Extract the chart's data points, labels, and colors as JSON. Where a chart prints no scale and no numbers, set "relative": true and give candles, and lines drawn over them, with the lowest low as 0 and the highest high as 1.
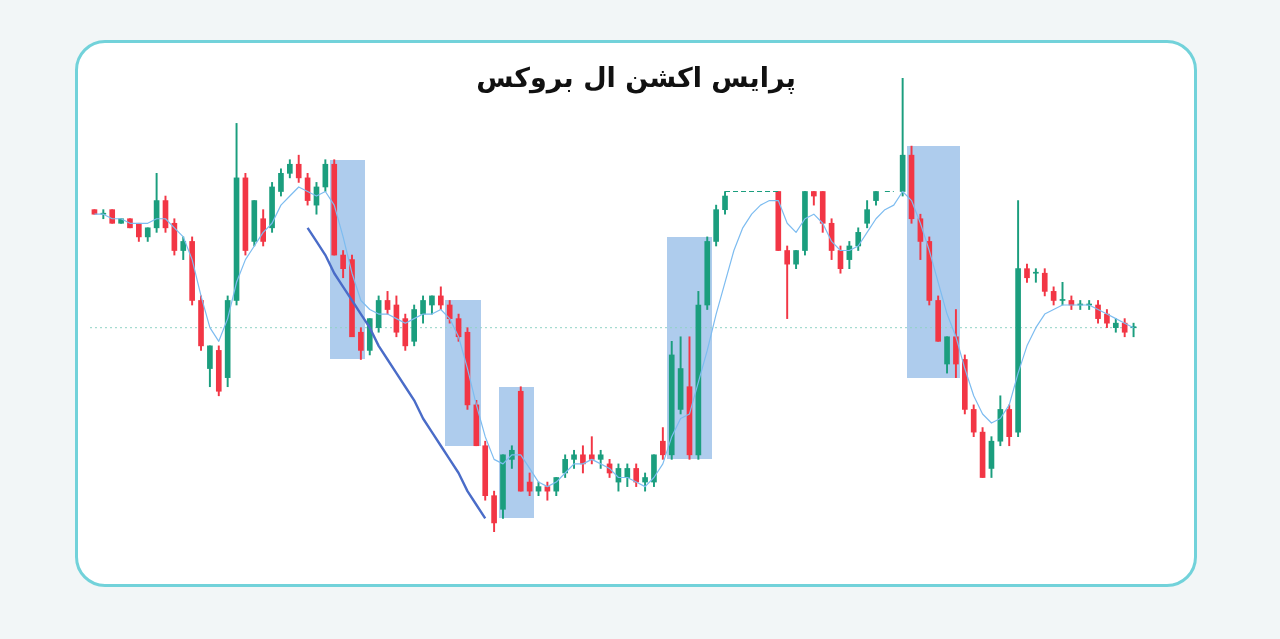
{
  "chart_data": {
    "type": "candlestick",
    "title": "پرایس اکشن ال بروکس",
    "relative": true,
    "legend": false,
    "tick_labels": false,
    "categories": [
      null,
      null,
      null,
      null,
      null,
      null,
      null,
      null,
      null,
      null,
      null,
      null,
      null,
      null,
      null,
      null,
      null,
      null,
      null,
      null,
      null,
      null,
      null,
      null,
      null,
      null,
      null,
      null,
      null,
      null,
      null,
      null,
      null,
      null,
      null,
      null,
      null,
      null,
      null,
      null,
      null,
      null,
      null,
      null,
      null,
      null,
      null,
      null,
      null,
      null,
      null,
      null,
      null,
      null,
      null,
      null,
      null,
      null,
      null,
      null,
      null,
      null,
      null,
      null,
      null,
      null,
      null,
      null,
      null,
      null,
      null,
      null,
      null,
      null,
      null,
      null,
      null,
      null,
      null,
      null,
      null,
      null,
      null,
      null,
      null,
      null,
      null,
      null,
      null,
      null,
      null,
      null,
      null,
      null,
      null,
      null,
      null,
      null,
      null,
      null,
      null,
      null,
      null,
      null,
      null,
      null,
      null,
      null,
      null,
      null,
      null,
      null,
      null,
      null,
      null,
      null,
      null,
      null
    ],
    "ohlc": [
      [
        0.71,
        0.71,
        0.7,
        0.7
      ],
      [
        0.7,
        0.71,
        0.69,
        0.7
      ],
      [
        0.71,
        0.71,
        0.68,
        0.68
      ],
      [
        0.68,
        0.69,
        0.68,
        0.69
      ],
      [
        0.69,
        0.69,
        0.67,
        0.67
      ],
      [
        0.68,
        0.68,
        0.64,
        0.65
      ],
      [
        0.65,
        0.67,
        0.64,
        0.67
      ],
      [
        0.67,
        0.79,
        0.66,
        0.73
      ],
      [
        0.73,
        0.74,
        0.66,
        0.67
      ],
      [
        0.68,
        0.69,
        0.61,
        0.62
      ],
      [
        0.62,
        0.65,
        0.6,
        0.64
      ],
      [
        0.64,
        0.65,
        0.5,
        0.51
      ],
      [
        0.51,
        0.52,
        0.4,
        0.41
      ],
      [
        0.36,
        0.41,
        0.32,
        0.41
      ],
      [
        0.4,
        0.41,
        0.3,
        0.31
      ],
      [
        0.34,
        0.52,
        0.32,
        0.51
      ],
      [
        0.51,
        0.9,
        0.5,
        0.78
      ],
      [
        0.78,
        0.79,
        0.61,
        0.62
      ],
      [
        0.64,
        0.73,
        0.63,
        0.73
      ],
      [
        0.69,
        0.71,
        0.63,
        0.64
      ],
      [
        0.67,
        0.77,
        0.66,
        0.76
      ],
      [
        0.75,
        0.8,
        0.74,
        0.79
      ],
      [
        0.79,
        0.82,
        0.78,
        0.81
      ],
      [
        0.81,
        0.83,
        0.77,
        0.78
      ],
      [
        0.78,
        0.79,
        0.72,
        0.73
      ],
      [
        0.72,
        0.77,
        0.7,
        0.76
      ],
      [
        0.76,
        0.82,
        0.75,
        0.81
      ],
      [
        0.81,
        0.82,
        0.61,
        0.61
      ],
      [
        0.61,
        0.62,
        0.56,
        0.58
      ],
      [
        0.6,
        0.61,
        0.43,
        0.43
      ],
      [
        0.44,
        0.45,
        0.38,
        0.4
      ],
      [
        0.4,
        0.47,
        0.39,
        0.47
      ],
      [
        0.45,
        0.52,
        0.44,
        0.51
      ],
      [
        0.51,
        0.53,
        0.48,
        0.49
      ],
      [
        0.5,
        0.52,
        0.43,
        0.44
      ],
      [
        0.47,
        0.48,
        0.4,
        0.41
      ],
      [
        0.42,
        0.5,
        0.41,
        0.49
      ],
      [
        0.48,
        0.52,
        0.46,
        0.51
      ],
      [
        0.5,
        0.52,
        0.48,
        0.52
      ],
      [
        0.52,
        0.54,
        0.49,
        0.5
      ],
      [
        0.5,
        0.51,
        0.46,
        0.47
      ],
      [
        0.47,
        0.48,
        0.42,
        0.43
      ],
      [
        0.44,
        0.45,
        0.27,
        0.28
      ],
      [
        0.28,
        0.29,
        0.19,
        0.19
      ],
      [
        0.19,
        0.2,
        0.07,
        0.08
      ],
      [
        0.08,
        0.09,
        0.0,
        0.02
      ],
      [
        0.05,
        0.17,
        0.03,
        0.17
      ],
      [
        0.16,
        0.19,
        0.14,
        0.18
      ],
      [
        0.31,
        0.32,
        0.09,
        0.09
      ],
      [
        0.11,
        0.13,
        0.08,
        0.09
      ],
      [
        0.09,
        0.11,
        0.08,
        0.1
      ],
      [
        0.1,
        0.11,
        0.07,
        0.09
      ],
      [
        0.09,
        0.12,
        0.08,
        0.12
      ],
      [
        0.13,
        0.17,
        0.12,
        0.16
      ],
      [
        0.16,
        0.18,
        0.14,
        0.17
      ],
      [
        0.17,
        0.19,
        0.13,
        0.15
      ],
      [
        0.17,
        0.21,
        0.15,
        0.16
      ],
      [
        0.16,
        0.18,
        0.14,
        0.17
      ],
      [
        0.15,
        0.16,
        0.12,
        0.13
      ],
      [
        0.11,
        0.15,
        0.09,
        0.14
      ],
      [
        0.12,
        0.15,
        0.1,
        0.14
      ],
      [
        0.14,
        0.15,
        0.1,
        0.11
      ],
      [
        0.11,
        0.13,
        0.09,
        0.12
      ],
      [
        0.11,
        0.17,
        0.1,
        0.17
      ],
      [
        0.2,
        0.23,
        0.16,
        0.17
      ],
      [
        0.17,
        0.42,
        0.16,
        0.39
      ],
      [
        0.27,
        0.43,
        0.26,
        0.36
      ],
      [
        0.32,
        0.43,
        0.16,
        0.17
      ],
      [
        0.17,
        0.53,
        0.16,
        0.5
      ],
      [
        0.5,
        0.65,
        0.49,
        0.64
      ],
      [
        0.64,
        0.72,
        0.63,
        0.71
      ],
      [
        0.71,
        0.75,
        0.7,
        0.74
      ],
      null,
      null,
      null,
      null,
      null,
      [
        0.75,
        0.75,
        0.62,
        0.62
      ],
      [
        0.62,
        0.63,
        0.47,
        0.59
      ],
      [
        0.59,
        0.62,
        0.58,
        0.62
      ],
      [
        0.62,
        0.75,
        0.61,
        0.75
      ],
      [
        0.75,
        0.75,
        0.72,
        0.74
      ],
      [
        0.75,
        0.75,
        0.66,
        0.68
      ],
      [
        0.68,
        0.69,
        0.6,
        0.62
      ],
      [
        0.62,
        0.63,
        0.57,
        0.58
      ],
      [
        0.6,
        0.64,
        0.58,
        0.63
      ],
      [
        0.63,
        0.67,
        0.62,
        0.66
      ],
      [
        0.68,
        0.73,
        0.67,
        0.71
      ],
      [
        0.73,
        0.75,
        0.72,
        0.75
      ],
      null,
      null,
      [
        0.75,
        1.0,
        0.74,
        0.83
      ],
      [
        0.83,
        0.85,
        0.68,
        0.69
      ],
      [
        0.69,
        0.7,
        0.6,
        0.64
      ],
      [
        0.64,
        0.65,
        0.5,
        0.51
      ],
      [
        0.51,
        0.52,
        0.42,
        0.42
      ],
      [
        0.37,
        0.43,
        0.35,
        0.43
      ],
      [
        0.43,
        0.49,
        0.34,
        0.37
      ],
      [
        0.38,
        0.39,
        0.26,
        0.27
      ],
      [
        0.27,
        0.28,
        0.21,
        0.22
      ],
      [
        0.22,
        0.23,
        0.12,
        0.12
      ],
      [
        0.14,
        0.21,
        0.12,
        0.2
      ],
      [
        0.2,
        0.3,
        0.19,
        0.27
      ],
      [
        0.27,
        0.28,
        0.19,
        0.21
      ],
      [
        0.22,
        0.73,
        0.21,
        0.58
      ],
      [
        0.58,
        0.59,
        0.55,
        0.56
      ],
      [
        0.57,
        0.58,
        0.55,
        0.57
      ],
      [
        0.57,
        0.58,
        0.52,
        0.53
      ],
      [
        0.53,
        0.54,
        0.5,
        0.51
      ],
      [
        0.51,
        0.55,
        0.5,
        0.51
      ],
      [
        0.51,
        0.52,
        0.49,
        0.5
      ],
      [
        0.5,
        0.51,
        0.49,
        0.5
      ],
      [
        0.5,
        0.51,
        0.49,
        0.5
      ],
      [
        0.5,
        0.51,
        0.46,
        0.47
      ],
      [
        0.48,
        0.49,
        0.45,
        0.46
      ],
      [
        0.45,
        0.47,
        0.44,
        0.46
      ],
      [
        0.46,
        0.47,
        0.43,
        0.44
      ],
      [
        0.45,
        0.46,
        0.43,
        0.45
      ]
    ],
    "colors": [
      "#f23645",
      "#1b9e7e",
      "#f23645",
      "#1b9e7e",
      "#f23645",
      "#f23645",
      "#1b9e7e",
      "#1b9e7e",
      "#f23645",
      "#f23645",
      "#1b9e7e",
      "#f23645",
      "#f23645",
      "#1b9e7e",
      "#f23645",
      "#1b9e7e",
      "#1b9e7e",
      "#f23645",
      "#1b9e7e",
      "#f23645",
      "#1b9e7e",
      "#1b9e7e",
      "#1b9e7e",
      "#f23645",
      "#f23645",
      "#1b9e7e",
      "#1b9e7e",
      "#f23645",
      "#f23645",
      "#f23645",
      "#f23645",
      "#1b9e7e",
      "#1b9e7e",
      "#f23645",
      "#f23645",
      "#f23645",
      "#1b9e7e",
      "#1b9e7e",
      "#1b9e7e",
      "#f23645",
      "#f23645",
      "#f23645",
      "#f23645",
      "#f23645",
      "#f23645",
      "#f23645",
      "#1b9e7e",
      "#1b9e7e",
      "#f23645",
      "#f23645",
      "#1b9e7e",
      "#f23645",
      "#1b9e7e",
      "#1b9e7e",
      "#1b9e7e",
      "#f23645",
      "#f23645",
      "#1b9e7e",
      "#f23645",
      "#1b9e7e",
      "#1b9e7e",
      "#f23645",
      "#1b9e7e",
      "#1b9e7e",
      "#f23645",
      "#1b9e7e",
      "#1b9e7e",
      "#f23645",
      "#1b9e7e",
      "#1b9e7e",
      "#1b9e7e",
      "#1b9e7e",
      null,
      null,
      null,
      null,
      null,
      "#f23645",
      "#f23645",
      "#1b9e7e",
      "#1b9e7e",
      "#f23645",
      "#f23645",
      "#f23645",
      "#f23645",
      "#1b9e7e",
      "#1b9e7e",
      "#1b9e7e",
      "#1b9e7e",
      null,
      null,
      "#1b9e7e",
      "#f23645",
      "#f23645",
      "#f23645",
      "#f23645",
      "#1b9e7e",
      "#f23645",
      "#f23645",
      "#f23645",
      "#f23645",
      "#1b9e7e",
      "#1b9e7e",
      "#f23645",
      "#1b9e7e",
      "#f23645",
      "#1b9e7e",
      "#f23645",
      "#f23645",
      "#1b9e7e",
      "#f23645",
      "#1b9e7e",
      "#1b9e7e",
      "#f23645",
      "#f23645",
      "#1b9e7e",
      "#f23645",
      "#1b9e7e"
    ],
    "series": [
      {
        "type": "line",
        "color": "#7dbcf0",
        "values": [
          0.7,
          0.7,
          0.69,
          0.69,
          0.68,
          0.68,
          0.68,
          0.69,
          0.69,
          0.67,
          0.65,
          0.6,
          0.52,
          0.45,
          0.42,
          0.47,
          0.55,
          0.6,
          0.63,
          0.66,
          0.68,
          0.72,
          0.74,
          0.76,
          0.75,
          0.74,
          0.75,
          0.72,
          0.65,
          0.57,
          0.51,
          0.49,
          0.48,
          0.48,
          0.47,
          0.46,
          0.47,
          0.48,
          0.48,
          0.49,
          0.47,
          0.43,
          0.36,
          0.28,
          0.21,
          0.16,
          0.15,
          0.17,
          0.17,
          0.14,
          0.11,
          0.1,
          0.11,
          0.13,
          0.15,
          0.15,
          0.16,
          0.15,
          0.14,
          0.12,
          0.12,
          0.11,
          0.1,
          0.12,
          0.15,
          0.21,
          0.25,
          0.26,
          0.33,
          0.4,
          0.48,
          0.55,
          0.62,
          0.67,
          0.7,
          0.72,
          0.73,
          0.73,
          0.68,
          0.66,
          0.69,
          0.7,
          0.68,
          0.64,
          0.62,
          0.62,
          0.63,
          0.66,
          0.69,
          0.71,
          0.72,
          0.75,
          0.73,
          0.68,
          0.62,
          0.55,
          0.48,
          0.43,
          0.36,
          0.3,
          0.26,
          0.24,
          0.25,
          0.28,
          0.35,
          0.41,
          0.45,
          0.48,
          0.49,
          0.5,
          0.5,
          0.5,
          0.5,
          0.49,
          0.48,
          0.47,
          0.46,
          0.45
        ]
      },
      {
        "type": "line",
        "color": "#4a6cc8",
        "values": [
          null,
          null,
          null,
          null,
          null,
          null,
          null,
          null,
          null,
          null,
          null,
          null,
          null,
          null,
          null,
          null,
          null,
          null,
          null,
          null,
          null,
          null,
          null,
          null,
          0.67,
          0.64,
          0.61,
          0.57,
          0.54,
          0.51,
          0.48,
          0.45,
          0.41,
          0.38,
          0.35,
          0.32,
          0.29,
          0.25,
          0.22,
          0.19,
          0.16,
          0.13,
          0.09,
          0.06,
          0.03,
          null,
          null,
          null,
          null,
          null,
          null,
          null,
          null,
          null,
          null,
          null,
          null,
          null,
          null,
          null,
          null,
          null,
          null,
          null,
          null,
          null,
          null,
          null,
          null,
          null,
          null,
          null,
          null,
          null,
          null,
          null,
          null,
          null,
          null,
          null,
          null,
          null,
          null,
          null,
          null,
          null,
          null,
          null,
          null,
          null,
          null,
          null,
          null,
          null,
          null,
          null,
          null,
          null,
          null,
          null,
          null,
          null,
          null,
          null,
          null,
          null,
          null,
          null,
          null,
          null,
          null,
          null,
          null,
          null,
          null,
          null,
          null,
          null
        ]
      },
      {
        "type": "line",
        "color": "#1b9e7e",
        "line_style": "dashed",
        "values": [
          null,
          null,
          null,
          null,
          null,
          null,
          null,
          null,
          null,
          null,
          null,
          null,
          null,
          null,
          null,
          null,
          null,
          null,
          null,
          null,
          null,
          null,
          null,
          null,
          null,
          null,
          null,
          null,
          null,
          null,
          null,
          null,
          null,
          null,
          null,
          null,
          null,
          null,
          null,
          null,
          null,
          null,
          null,
          null,
          null,
          null,
          null,
          null,
          null,
          null,
          null,
          null,
          null,
          null,
          null,
          null,
          null,
          null,
          null,
          null,
          null,
          null,
          null,
          null,
          null,
          null,
          null,
          null,
          null,
          null,
          null,
          0.75,
          0.75,
          0.75,
          0.75,
          0.75,
          0.75,
          0.75,
          null,
          null,
          null,
          null,
          null,
          null,
          null,
          null,
          null,
          null,
          null,
          0.75,
          0.75,
          null,
          null,
          null,
          null,
          null,
          null,
          null,
          null,
          null,
          null,
          null,
          null,
          null,
          null,
          null,
          null,
          null,
          null,
          null,
          null,
          null,
          null,
          null,
          null,
          null,
          null,
          null
        ]
      }
    ],
    "ref_lines": [
      {
        "axis": "y",
        "value": 0.45,
        "color": "#8fd3c6",
        "line_style": "dotted"
      }
    ]
  }
}
